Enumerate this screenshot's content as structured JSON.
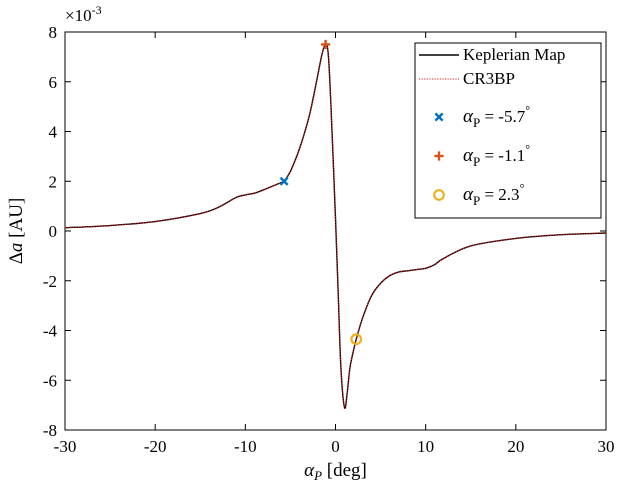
{
  "chart_data": {
    "type": "line",
    "xlabel": "αP [deg]",
    "ylabel": "Δa [AU]",
    "exponent_label": "×10-3",
    "xlim": [
      -30,
      30
    ],
    "ylim": [
      -8,
      8
    ],
    "y_scale_factor": 0.001,
    "xticks": [
      -30,
      -20,
      -10,
      0,
      10,
      20,
      30
    ],
    "yticks": [
      -8,
      -6,
      -4,
      -2,
      0,
      2,
      4,
      6,
      8
    ],
    "grid": false,
    "legend_position": "top-right",
    "series": [
      {
        "name": "Keplerian Map",
        "color": "#000000",
        "style": "solid",
        "x": [
          -30,
          -25,
          -20,
          -15,
          -13,
          -11,
          -10,
          -9,
          -8,
          -7,
          -6,
          -5.7,
          -5,
          -4,
          -3,
          -2.5,
          -2,
          -1.5,
          -1.1,
          -0.8,
          -0.5,
          0,
          0.3,
          0.6,
          1,
          1.3,
          1.6,
          2,
          2.3,
          3,
          4,
          5,
          6,
          7,
          8,
          9,
          10,
          11,
          12,
          15,
          20,
          25,
          30
        ],
        "y": [
          0.13,
          0.22,
          0.38,
          0.7,
          0.95,
          1.35,
          1.45,
          1.52,
          1.65,
          1.8,
          1.95,
          2.0,
          2.4,
          3.3,
          4.5,
          5.3,
          6.2,
          7.1,
          7.5,
          7.1,
          5.0,
          0.5,
          -2.5,
          -5.5,
          -7.1,
          -6.5,
          -5.5,
          -4.8,
          -4.35,
          -3.5,
          -2.6,
          -2.1,
          -1.8,
          -1.65,
          -1.6,
          -1.55,
          -1.5,
          -1.35,
          -1.1,
          -0.6,
          -0.3,
          -0.15,
          -0.08
        ]
      },
      {
        "name": "CR3BP",
        "color": "#e4191c",
        "style": "dotted",
        "x": [
          -30,
          -25,
          -20,
          -15,
          -13,
          -11,
          -10,
          -9,
          -8,
          -7,
          -6,
          -5.7,
          -5,
          -4,
          -3,
          -2.5,
          -2,
          -1.5,
          -1.1,
          -0.8,
          -0.5,
          0,
          0.3,
          0.6,
          1,
          1.3,
          1.6,
          2,
          2.3,
          3,
          4,
          5,
          6,
          7,
          8,
          9,
          10,
          11,
          12,
          15,
          20,
          25,
          30
        ],
        "y": [
          0.13,
          0.22,
          0.38,
          0.7,
          0.95,
          1.35,
          1.45,
          1.52,
          1.65,
          1.8,
          1.95,
          2.0,
          2.4,
          3.3,
          4.5,
          5.3,
          6.2,
          7.1,
          7.5,
          7.1,
          5.0,
          0.5,
          -2.5,
          -5.5,
          -7.1,
          -6.5,
          -5.5,
          -4.8,
          -4.35,
          -3.5,
          -2.6,
          -2.1,
          -1.8,
          -1.65,
          -1.6,
          -1.55,
          -1.5,
          -1.35,
          -1.1,
          -0.6,
          -0.3,
          -0.15,
          -0.08
        ]
      }
    ],
    "markers": [
      {
        "label": "αP = -5.7°",
        "x": -5.7,
        "y": 2.0,
        "marker": "x",
        "color": "#0072bd"
      },
      {
        "label": "αP = -1.1°",
        "x": -1.1,
        "y": 7.5,
        "marker": "plus",
        "color": "#d95319"
      },
      {
        "label": "αP = 2.3°",
        "x": 2.3,
        "y": -4.35,
        "marker": "circle",
        "color": "#edb120"
      }
    ]
  }
}
